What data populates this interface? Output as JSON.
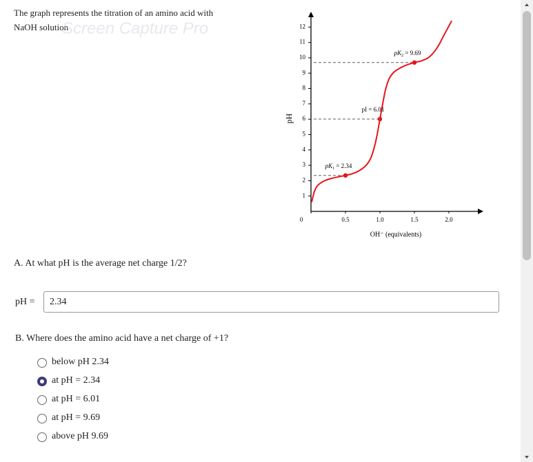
{
  "header": {
    "line1": "The graph represents the titration of an amino acid with",
    "line2": "NaOH solution",
    "watermark": "Screen Capture Pro"
  },
  "chart_data": {
    "type": "line",
    "x_label": "OH⁻ (equivalents)",
    "y_label": "pH",
    "x": [
      0.01,
      0.05,
      0.1,
      0.2,
      0.3,
      0.4,
      0.5,
      0.6,
      0.7,
      0.8,
      0.87,
      0.92,
      0.96,
      1.0,
      1.04,
      1.08,
      1.13,
      1.2,
      1.3,
      1.4,
      1.5,
      1.6,
      1.7,
      1.78,
      1.85,
      1.92,
      1.98,
      2.04
    ],
    "series": [
      {
        "color": "#e8141a",
        "values": [
          0.6,
          1.3,
          1.7,
          2.0,
          2.15,
          2.25,
          2.34,
          2.45,
          2.65,
          3.0,
          3.5,
          4.2,
          5.0,
          6.01,
          7.0,
          7.9,
          8.6,
          9.05,
          9.35,
          9.55,
          9.69,
          9.8,
          10.0,
          10.35,
          10.8,
          11.4,
          11.9,
          12.4
        ]
      }
    ],
    "xlim": [
      0,
      2.5
    ],
    "ylim": [
      0,
      13
    ],
    "xticks": [
      0,
      0.5,
      {
        "value": 1,
        "label": "1.0"
      },
      1.5,
      {
        "value": 2,
        "label": "2.0"
      }
    ],
    "yticks": [
      1,
      2,
      3,
      4,
      5,
      6,
      7,
      8,
      9,
      10,
      11,
      12
    ],
    "annotations": [
      {
        "label": "pK",
        "subscript": "1",
        "text": " = 2.34",
        "x": 0.5,
        "y": 2.34
      },
      {
        "label": "pI",
        "text": " = 6.01",
        "x": 1,
        "y": 6.01
      },
      {
        "label": "pK",
        "subscript": "2",
        "text": " = 9.69",
        "x": 1.5,
        "y": 9.69
      }
    ]
  },
  "part_a": {
    "question": "A. At what pH is the average net charge 1/2?",
    "input_label": "pH =",
    "input_value": "2.34"
  },
  "part_b": {
    "question": "B. Where does the amino acid have a net charge of +1?",
    "options": [
      "below pH 2.34",
      "at pH = 2.34",
      "at pH = 6.01",
      "at pH = 9.69",
      "above pH 9.69"
    ],
    "selected": 1
  }
}
